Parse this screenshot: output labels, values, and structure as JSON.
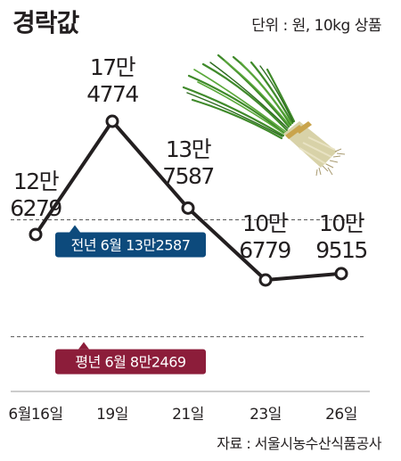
{
  "header": {
    "title": "경락값",
    "unit": "단위 : 원, 10kg 상품"
  },
  "footer": {
    "source": "자료 : 서울시농수산식품공사"
  },
  "colors": {
    "line": "#231f20",
    "reference_last_year": "#0d4a7c",
    "reference_average": "#8c1d3a"
  },
  "illustration": "chives-bundle",
  "chart_data": {
    "type": "line",
    "categories": [
      "6월16일",
      "19일",
      "21일",
      "23일",
      "26일"
    ],
    "values": [
      126279,
      174774,
      137587,
      106779,
      109515
    ],
    "value_labels": [
      [
        "12만",
        "6279"
      ],
      [
        "17만",
        "4774"
      ],
      [
        "13만",
        "7587"
      ],
      [
        "10만",
        "6779"
      ],
      [
        "10만",
        "9515"
      ]
    ],
    "reference_lines": [
      {
        "label": "전년 6월 13만2587",
        "value": 132587,
        "color": "#0d4a7c"
      },
      {
        "label": "평년 6월  8만2469",
        "value": 82469,
        "color": "#8c1d3a"
      }
    ],
    "title": "경락값",
    "xlabel": "",
    "ylabel": "",
    "grid": false,
    "legend": "none"
  }
}
